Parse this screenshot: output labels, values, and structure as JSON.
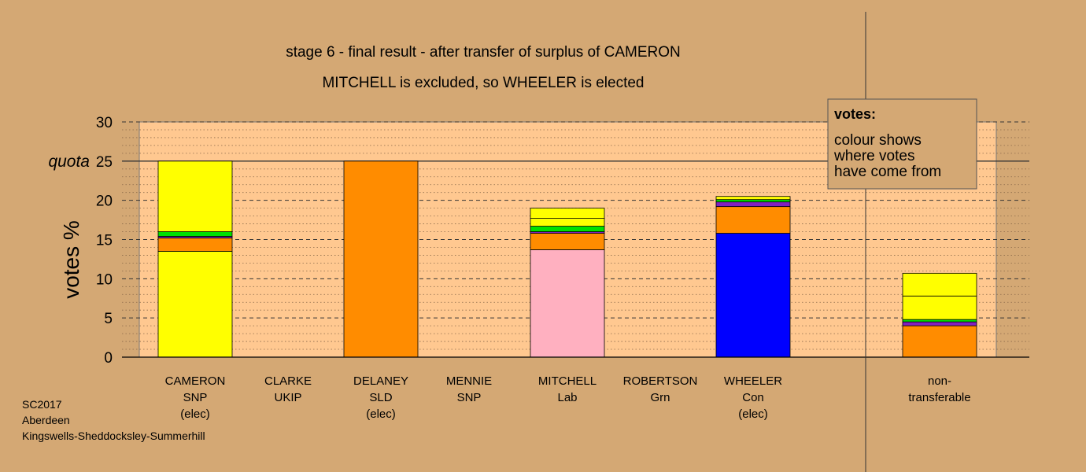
{
  "colors": {
    "background": "#d4a874",
    "plot_area": "#ffc890",
    "snp": "#ffff00",
    "sld": "#ff8c00",
    "lab": "#ffb0c0",
    "con": "#0000ff",
    "grn": "#00e000",
    "ukip": "#8020c0"
  },
  "chart_data": {
    "type": "bar",
    "stacked": true,
    "title": "stage 6 - final result - after transfer of surplus of CAMERON",
    "subtitle": "MITCHELL is excluded, so WHEELER is elected",
    "ylabel": "votes %",
    "ylim": [
      0,
      30
    ],
    "yticks": [
      0,
      5,
      10,
      15,
      20,
      25,
      30
    ],
    "quota": {
      "label": "quota",
      "value": 25
    },
    "grid": true,
    "categories": [
      {
        "id": "cameron",
        "lines": [
          "CAMERON",
          "SNP",
          "(elec)"
        ]
      },
      {
        "id": "clarke",
        "lines": [
          "CLARKE",
          "UKIP"
        ]
      },
      {
        "id": "delaney",
        "lines": [
          "DELANEY",
          "SLD",
          "(elec)"
        ]
      },
      {
        "id": "mennie",
        "lines": [
          "MENNIE",
          "SNP"
        ]
      },
      {
        "id": "mitchell",
        "lines": [
          "MITCHELL",
          "Lab"
        ]
      },
      {
        "id": "robertson",
        "lines": [
          "ROBERTSON",
          "Grn"
        ]
      },
      {
        "id": "wheeler",
        "lines": [
          "WHEELER",
          "Con",
          "(elec)"
        ]
      },
      {
        "id": "nontransferable",
        "lines": [
          "non-",
          "transferable"
        ]
      }
    ],
    "stacks": {
      "cameron": [
        {
          "color": "snp",
          "value": 13.5
        },
        {
          "color": "sld",
          "value": 1.7
        },
        {
          "color": "ukip",
          "value": 0.2
        },
        {
          "color": "grn",
          "value": 0.6
        },
        {
          "color": "snp",
          "value": 9.0
        }
      ],
      "clarke": [],
      "delaney": [
        {
          "color": "sld",
          "value": 25.0
        }
      ],
      "mennie": [],
      "mitchell": [
        {
          "color": "lab",
          "value": 13.7
        },
        {
          "color": "sld",
          "value": 2.1
        },
        {
          "color": "ukip",
          "value": 0.2
        },
        {
          "color": "grn",
          "value": 0.7
        },
        {
          "color": "snp",
          "value": 1.0
        },
        {
          "color": "snp",
          "value": 1.3
        }
      ],
      "wheeler": [
        {
          "color": "con",
          "value": 15.8
        },
        {
          "color": "sld",
          "value": 3.4
        },
        {
          "color": "ukip",
          "value": 0.6
        },
        {
          "color": "grn",
          "value": 0.3
        },
        {
          "color": "snp",
          "value": 0.4
        }
      ],
      "nontransferable": [
        {
          "color": "sld",
          "value": 4.0
        },
        {
          "color": "ukip",
          "value": 0.5
        },
        {
          "color": "grn",
          "value": 0.3
        },
        {
          "color": "snp",
          "value": 3.0
        },
        {
          "color": "snp",
          "value": 2.9
        }
      ]
    },
    "legend": {
      "title": "votes:",
      "lines": [
        "colour shows",
        "where votes",
        "have come from"
      ],
      "placement": "top-right"
    }
  },
  "footer": {
    "lines": [
      "SC2017",
      "Aberdeen",
      "Kingswells-Sheddocksley-Summerhill"
    ]
  }
}
